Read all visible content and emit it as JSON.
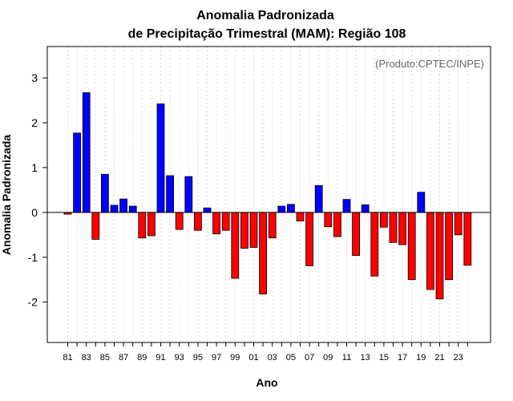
{
  "chart_data": {
    "type": "bar",
    "title": "Anomalia Padronizada",
    "subtitle": "de Precipitação Trimestral (MAM): Região 108",
    "xlabel": "Ano",
    "ylabel": "Anomalia Padronizada",
    "annotation": "(Produto:CPTEC/INPE)",
    "ylim": [
      -2.9,
      3.7
    ],
    "yticks": [
      -2,
      -1,
      0,
      1,
      2,
      3
    ],
    "xtick_labels": [
      "81",
      "83",
      "85",
      "87",
      "89",
      "91",
      "93",
      "95",
      "97",
      "99",
      "01",
      "03",
      "05",
      "07",
      "09",
      "11",
      "13",
      "15",
      "17",
      "19",
      "21",
      "23"
    ],
    "positive_color": "#0000ff",
    "negative_color": "#ff0000",
    "grid": "vertical dotted",
    "categories": [
      "1981",
      "1982",
      "1983",
      "1984",
      "1985",
      "1986",
      "1987",
      "1988",
      "1989",
      "1990",
      "1991",
      "1992",
      "1993",
      "1994",
      "1995",
      "1996",
      "1997",
      "1998",
      "1999",
      "2000",
      "2001",
      "2002",
      "2003",
      "2004",
      "2005",
      "2006",
      "2007",
      "2008",
      "2009",
      "2010",
      "2011",
      "2012",
      "2013",
      "2014",
      "2015",
      "2016",
      "2017",
      "2018",
      "2019",
      "2020",
      "2021",
      "2022",
      "2023",
      "2024"
    ],
    "values": [
      -0.04,
      1.77,
      2.67,
      -0.6,
      0.85,
      0.16,
      0.3,
      0.14,
      -0.57,
      -0.52,
      2.42,
      0.82,
      -0.38,
      0.8,
      -0.4,
      0.1,
      -0.48,
      -0.4,
      -1.47,
      -0.8,
      -0.78,
      -1.82,
      -0.57,
      0.14,
      0.18,
      -0.19,
      -1.19,
      0.6,
      -0.32,
      -0.54,
      0.29,
      -0.96,
      0.17,
      -1.42,
      -0.33,
      -0.67,
      -0.72,
      -1.5,
      0.45,
      -1.72,
      -1.93,
      -1.5,
      -0.5,
      -1.18
    ]
  }
}
